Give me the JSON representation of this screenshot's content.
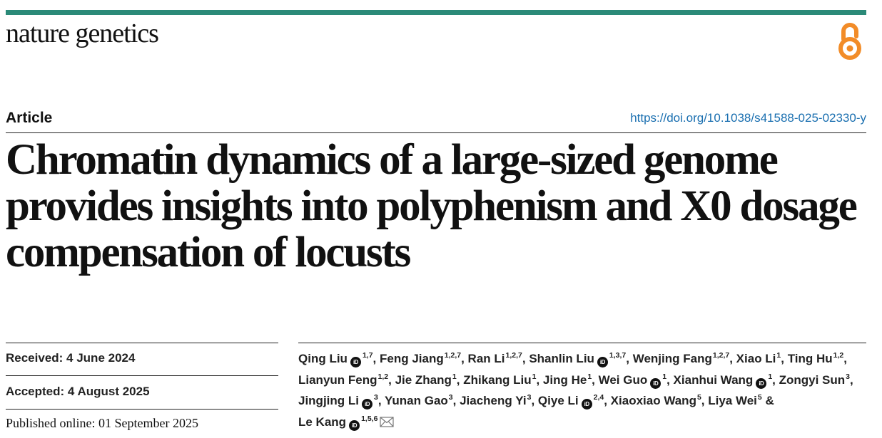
{
  "journal": {
    "name": "nature genetics"
  },
  "header": {
    "article_type": "Article",
    "doi": "https://doi.org/10.1038/s41588-025-02330-y",
    "icons": {
      "open_access": "open-access-lock-icon",
      "orcid": "orcid-icon",
      "email": "envelope-icon"
    }
  },
  "colors": {
    "accent_bar": "#2b8a78",
    "open_access": "#f28c28",
    "doi_link": "#1a6fb0"
  },
  "title": "Chromatin dynamics of a large-sized genome provides insights into polyphenism and X0 dosage compensation of locusts",
  "dates": {
    "received": "Received: 4 June 2024",
    "accepted": "Accepted: 4 August 2025",
    "published": "Published online: 01 September 2025"
  },
  "authors": [
    {
      "name": "Qing Liu",
      "orcid": true,
      "aff": "1,7"
    },
    {
      "name": "Feng Jiang",
      "orcid": false,
      "aff": "1,2,7"
    },
    {
      "name": "Ran Li",
      "orcid": false,
      "aff": "1,2,7"
    },
    {
      "name": "Shanlin Liu",
      "orcid": true,
      "aff": "1,3,7"
    },
    {
      "name": "Wenjing Fang",
      "orcid": false,
      "aff": "1,2,7"
    },
    {
      "name": "Xiao Li",
      "orcid": false,
      "aff": "1"
    },
    {
      "name": "Ting Hu",
      "orcid": false,
      "aff": "1,2"
    },
    {
      "name": "Lianyun Feng",
      "orcid": false,
      "aff": "1,2"
    },
    {
      "name": "Jie Zhang",
      "orcid": false,
      "aff": "1"
    },
    {
      "name": "Zhikang Liu",
      "orcid": false,
      "aff": "1"
    },
    {
      "name": "Jing He",
      "orcid": false,
      "aff": "1"
    },
    {
      "name": "Wei Guo",
      "orcid": true,
      "aff": "1"
    },
    {
      "name": "Xianhui Wang",
      "orcid": true,
      "aff": "1"
    },
    {
      "name": "Zongyi Sun",
      "orcid": false,
      "aff": "3"
    },
    {
      "name": "Jingjing Li",
      "orcid": true,
      "aff": "3"
    },
    {
      "name": "Yunan Gao",
      "orcid": false,
      "aff": "3"
    },
    {
      "name": "Jiacheng Yi",
      "orcid": false,
      "aff": "3"
    },
    {
      "name": "Qiye Li",
      "orcid": true,
      "aff": "2,4"
    },
    {
      "name": "Xiaoxiao Wang",
      "orcid": false,
      "aff": "5"
    },
    {
      "name": "Liya Wei",
      "orcid": false,
      "aff": "5"
    },
    {
      "name": "Le Kang",
      "orcid": true,
      "aff": "1,5,6",
      "corresponding": true
    }
  ],
  "author_separators": {
    "comma": ", ",
    "and": " & "
  }
}
